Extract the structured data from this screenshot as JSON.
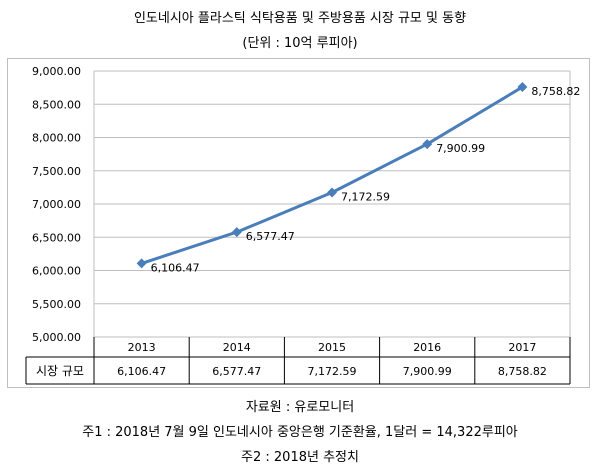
{
  "title": "인도네시아 플라스틱 식탁용품 및 주방용품 시장 규모 및 동향",
  "subtitle": "(단위 : 10억 루피아)",
  "footnotes": {
    "source": "자료원 : 유로모니터",
    "note1": "주1 : 2018년 7월 9일 인도네시아 중앙은행 기준환율, 1달러 = 14,322루피아",
    "note2": "주2 : 2018년 추정치"
  },
  "chart_data": {
    "type": "line",
    "title": "인도네시아 플라스틱 식탁용품 및 주방용품 시장 규모 및 동향",
    "subtitle": "(단위 : 10억 루피아)",
    "categories": [
      "2013",
      "2014",
      "2015",
      "2016",
      "2017"
    ],
    "series": [
      {
        "name": "시장 규모",
        "values": [
          6106.47,
          6577.47,
          7172.59,
          7900.99,
          8758.82
        ],
        "value_labels": [
          "6,106.47",
          "6,577.47",
          "7,172.59",
          "7,900.99",
          "8,758.82"
        ],
        "color": "#4a7ebb"
      }
    ],
    "ylim": [
      5000,
      9000
    ],
    "yticks": [
      5000,
      5500,
      6000,
      6500,
      7000,
      7500,
      8000,
      8500,
      9000
    ],
    "ytick_labels": [
      "5,000.00",
      "5,500.00",
      "6,000.00",
      "6,500.00",
      "7,000.00",
      "7,500.00",
      "8,000.00",
      "8,500.00",
      "9,000.00"
    ],
    "grid": true,
    "legend": "none",
    "data_table": true
  }
}
